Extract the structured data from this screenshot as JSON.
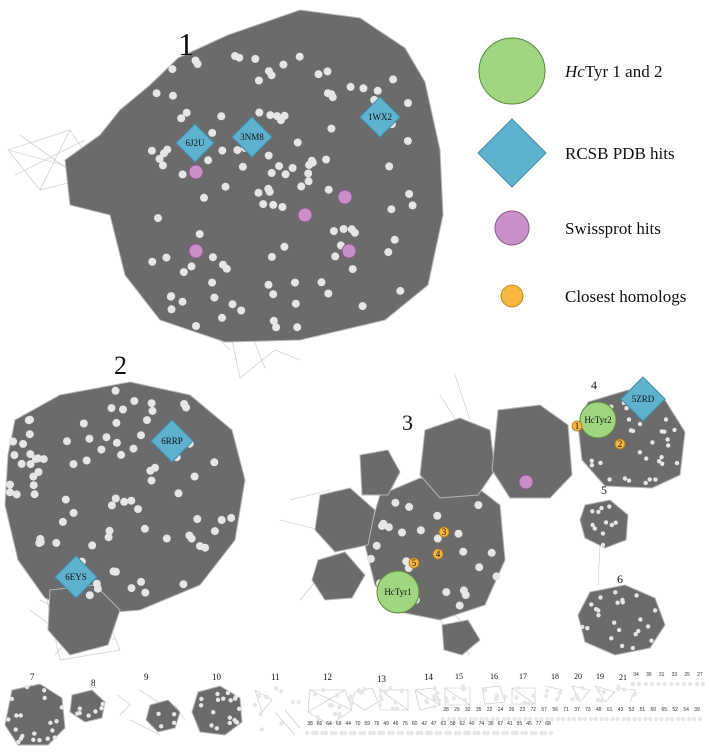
{
  "clusters": [
    {
      "id": "c1",
      "label": "1"
    },
    {
      "id": "c2",
      "label": "2"
    },
    {
      "id": "c3",
      "label": "3"
    },
    {
      "id": "c4",
      "label": "4"
    },
    {
      "id": "c5",
      "label": "5"
    },
    {
      "id": "c6",
      "label": "6"
    },
    {
      "id": "c7",
      "label": "7"
    },
    {
      "id": "c8",
      "label": "8"
    },
    {
      "id": "c9",
      "label": "9"
    },
    {
      "id": "c10",
      "label": "10"
    },
    {
      "id": "c11",
      "label": "11"
    },
    {
      "id": "c12",
      "label": "12"
    },
    {
      "id": "c13",
      "label": "13"
    },
    {
      "id": "c14",
      "label": "14"
    },
    {
      "id": "c15",
      "label": "15"
    },
    {
      "id": "c16",
      "label": "16"
    },
    {
      "id": "c17",
      "label": "17"
    },
    {
      "id": "c18",
      "label": "18"
    },
    {
      "id": "c19",
      "label": "19"
    },
    {
      "id": "c20",
      "label": "20"
    },
    {
      "id": "c21",
      "label": "21"
    }
  ],
  "pdb_hits": [
    {
      "cluster": "1",
      "label": "6J2U"
    },
    {
      "cluster": "1",
      "label": "3NM8"
    },
    {
      "cluster": "1",
      "label": "1WX2"
    },
    {
      "cluster": "2",
      "label": "6RRP"
    },
    {
      "cluster": "2",
      "label": "6EYS"
    },
    {
      "cluster": "4",
      "label": "5ZRD"
    }
  ],
  "hc_nodes": [
    {
      "cluster": "3",
      "label": "HcTyr1"
    },
    {
      "cluster": "4",
      "label": "HcTyr2"
    }
  ],
  "homologs": [
    {
      "cluster": "4",
      "label": "1"
    },
    {
      "cluster": "4",
      "label": "2"
    },
    {
      "cluster": "3",
      "label": "3"
    },
    {
      "cluster": "3",
      "label": "4"
    },
    {
      "cluster": "3",
      "label": "5"
    }
  ],
  "legend": {
    "hc": {
      "italic": "Hc",
      "rest": "Tyr 1 and 2",
      "color": "#9fd67f"
    },
    "pdb": {
      "text": "RCSB PDB hits",
      "color": "#5fb2cd"
    },
    "swiss": {
      "text": "Swissprot hits",
      "color": "#c98fc9"
    },
    "homolog": {
      "text": "Closest homologs",
      "color": "#f5b73f"
    }
  },
  "small_row_top": [
    "34",
    "30",
    "31",
    "33",
    "25",
    "27"
  ],
  "small_row_mid": [
    "28",
    "29",
    "32",
    "35",
    "22",
    "24",
    "26",
    "23",
    "72",
    "57",
    "56",
    "71",
    "37",
    "73",
    "48",
    "61",
    "43",
    "53",
    "51",
    "50",
    "65",
    "52",
    "54",
    "39"
  ],
  "small_row_bottom": [
    "38",
    "66",
    "64",
    "69",
    "44",
    "70",
    "59",
    "76",
    "49",
    "46",
    "75",
    "60",
    "42",
    "47",
    "63",
    "58",
    "62",
    "40",
    "74",
    "36",
    "67",
    "41",
    "55",
    "45",
    "77",
    "68"
  ]
}
